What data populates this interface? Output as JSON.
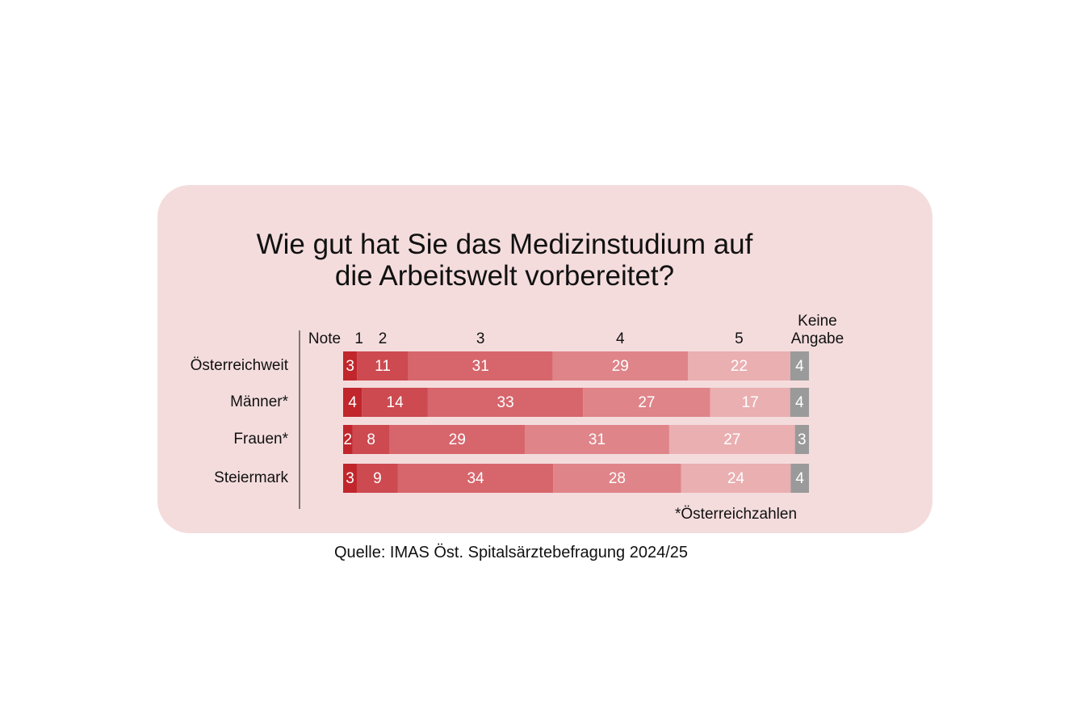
{
  "chart_data": {
    "type": "bar",
    "orientation": "horizontal",
    "stacked": true,
    "title_lines": [
      "Wie gut hat Sie das Medizinstudium auf",
      "die Arbeitswelt vorbereitet?"
    ],
    "scale_label": "Note",
    "categories": [
      "Österreichweit",
      "Männer*",
      "Frauen*",
      "Steiermark"
    ],
    "series": [
      {
        "name": "1",
        "color": "#c0262c",
        "values": [
          3,
          4,
          2,
          3
        ]
      },
      {
        "name": "2",
        "color": "#cc4a50",
        "values": [
          11,
          14,
          8,
          9
        ]
      },
      {
        "name": "3",
        "color": "#d6666c",
        "values": [
          31,
          33,
          29,
          34
        ]
      },
      {
        "name": "4",
        "color": "#df8489",
        "values": [
          29,
          27,
          31,
          28
        ]
      },
      {
        "name": "5",
        "color": "#eaafb1",
        "values": [
          22,
          17,
          27,
          24
        ]
      },
      {
        "name": "Keine Angabe",
        "name_lines": [
          "Keine",
          "Angabe"
        ],
        "color": "#9a9a9a",
        "values": [
          4,
          4,
          3,
          4
        ]
      }
    ],
    "legend_placement": "top",
    "grid": false
  },
  "footnote": "*Österreichzahlen",
  "source": "Quelle: IMAS Öst. Spitalsärztebefragung 2024/25"
}
